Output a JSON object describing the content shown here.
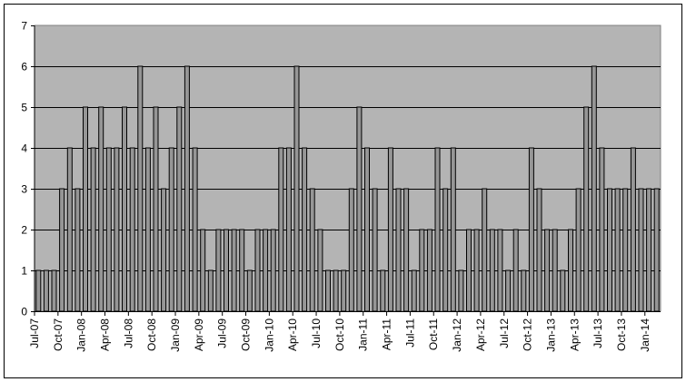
{
  "chart_data": {
    "type": "bar",
    "title": "",
    "xlabel": "",
    "ylabel": "",
    "ylim": [
      0,
      7
    ],
    "yticks": [
      0,
      1,
      2,
      3,
      4,
      5,
      6,
      7
    ],
    "grid": true,
    "legend": "none",
    "colors": {
      "plot_background": "#b4b4b4",
      "bar_fill": "#969696",
      "bar_edge": "#000000",
      "gridline": "#000000"
    },
    "categories": [
      "Jul-07",
      "Aug-07",
      "Sep-07",
      "Oct-07",
      "Nov-07",
      "Dec-07",
      "Jan-08",
      "Feb-08",
      "Mar-08",
      "Apr-08",
      "May-08",
      "Jun-08",
      "Jul-08",
      "Aug-08",
      "Sep-08",
      "Oct-08",
      "Nov-08",
      "Dec-08",
      "Jan-09",
      "Feb-09",
      "Mar-09",
      "Apr-09",
      "May-09",
      "Jun-09",
      "Jul-09",
      "Aug-09",
      "Sep-09",
      "Oct-09",
      "Nov-09",
      "Dec-09",
      "Jan-10",
      "Feb-10",
      "Mar-10",
      "Apr-10",
      "May-10",
      "Jun-10",
      "Jul-10",
      "Aug-10",
      "Sep-10",
      "Oct-10",
      "Nov-10",
      "Dec-10",
      "Jan-11",
      "Feb-11",
      "Mar-11",
      "Apr-11",
      "May-11",
      "Jun-11",
      "Jul-11",
      "Aug-11",
      "Sep-11",
      "Oct-11",
      "Nov-11",
      "Dec-11",
      "Jan-12",
      "Feb-12",
      "Mar-12",
      "Apr-12",
      "May-12",
      "Jun-12",
      "Jul-12",
      "Aug-12",
      "Sep-12",
      "Oct-12",
      "Nov-12",
      "Dec-12",
      "Jan-13",
      "Feb-13",
      "Mar-13",
      "Apr-13",
      "May-13",
      "Jun-13",
      "Jul-13",
      "Aug-13",
      "Sep-13",
      "Oct-13",
      "Nov-13",
      "Dec-13",
      "Jan-14",
      "Feb-14"
    ],
    "values": [
      1,
      1,
      1,
      3,
      4,
      3,
      5,
      4,
      5,
      4,
      4,
      5,
      4,
      6,
      4,
      5,
      3,
      4,
      5,
      6,
      4,
      2,
      1,
      2,
      2,
      2,
      2,
      1,
      2,
      2,
      2,
      4,
      4,
      6,
      4,
      3,
      2,
      1,
      1,
      1,
      3,
      5,
      4,
      3,
      1,
      4,
      3,
      3,
      1,
      2,
      2,
      4,
      3,
      4,
      1,
      2,
      2,
      3,
      2,
      2,
      1,
      2,
      1,
      4,
      3,
      2,
      2,
      1,
      2,
      3,
      5,
      6,
      4,
      3,
      3,
      3,
      4,
      3,
      3,
      3
    ],
    "xtick_labels": [
      "Jul-07",
      "Oct-07",
      "Jan-08",
      "Apr-08",
      "Jul-08",
      "Oct-08",
      "Jan-09",
      "Apr-09",
      "Jul-09",
      "Oct-09",
      "Jan-10",
      "Apr-10",
      "Jul-10",
      "Oct-10",
      "Jan-11",
      "Apr-11",
      "Jul-11",
      "Oct-11",
      "Jan-12",
      "Apr-12",
      "Jul-12",
      "Oct-12",
      "Jan-13",
      "Apr-13",
      "Jul-13",
      "Oct-13",
      "Jan-14"
    ]
  }
}
